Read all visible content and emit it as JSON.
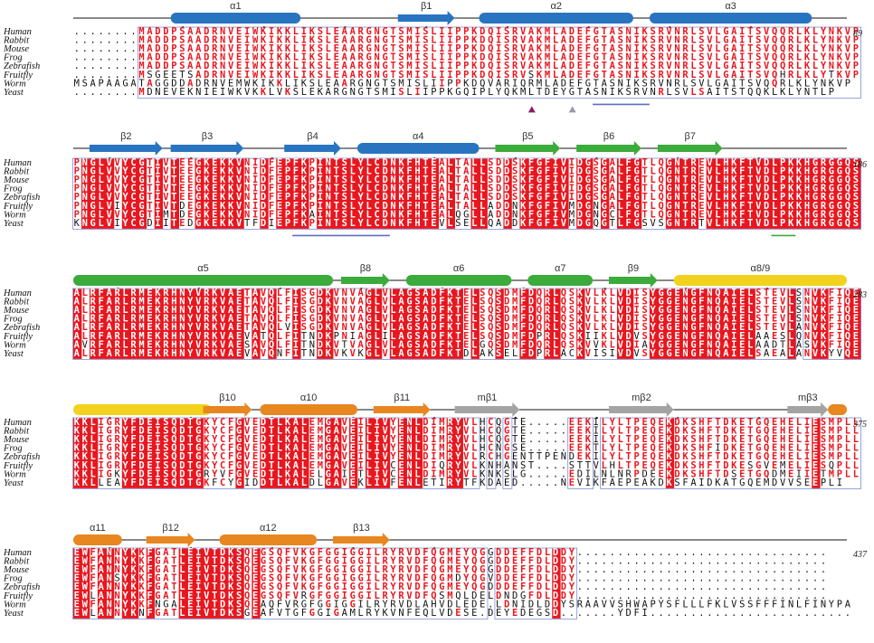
{
  "species": [
    "Human",
    "Rabbit",
    "Mouse",
    "Frog",
    "Zebrafish",
    "Fruitfly",
    "Worm",
    "Yeast"
  ],
  "colors": {
    "helix_blue": "#2874c0",
    "strand_green": "#3bab3b",
    "helix_yellow": "#f2d21c",
    "orange": "#e8861f",
    "gray": "#a3a3a3",
    "conserved": "#e8171f",
    "box": "#7f8fd0",
    "marker_purple": "#8a1c6a",
    "marker_gray": "#9a9aa8",
    "underline_blue": "#5b6fbf",
    "underline_green": "#3bab3b"
  },
  "blocks": [
    {
      "end_number": "89",
      "sequences": [
        "........MADDPSAADRNVEIWKIKKLIKSLEAARGNGTSMISLIIPPKDQISRVAKMLADEFGTASNIKSRVNRLSVLGAITSVQQRLKLYNKVP",
        "........MADDPSAADRNVEIWKIKKLIKSLEAARGNGTSMISLIIPPKDQISRVAKMLADEFGTASNIKSRVNRLSVLGAITSVQQRLKLYNKVP",
        "........MADDPSAADRNVEIWKIKKLIKSLEAARGNGTSMISLIIPPKDQISRVAKMLADEFGTASNIKSRVNRLSVLGAITSVQQRLKLYNKVP",
        "........MADDPSAADRNVEIWKIKKLIKSLEAARGNGTSMISLIIPPKDQISRVAKMLADEFGTASNIKSRVNRLSVLGAITSVQQRLKLYNKVP",
        "........MADDPSAADRNVEIWKIKKLIKSLEAARGNGTSMISLIIPPKDQISRVAKMLADEFGTASNIKSRVNRLSVLGAITSVQQRLKLYNKVP",
        "........MSGEETSADRNVEIWKIKKLIKSLEAARGNGTSMISLIIPPKDQISRVSKMLADEFGTASNIKSRVNRLSVLGAITSVQHRLKLYTKVP",
        "MSAPAAGATAGGDDADRNVEMWKIKKLIKSLEAARGNGTSMISLIIPPKDQVARIQRMLADEFGTASNIKSRVNRLSVLGAITSVQQRLKLYNKVP",
        "........MDNEVEKNIEIWKVKKLVKSLEKARGNGTSMISLIIPPKGQIPLYQKMLTDEYGTASNIKSRVNRLSVLSAITSTQQKLKLYNTLP"
      ],
      "annotations": [
        {
          "kind": "helix",
          "label": "α1",
          "color": "helix_blue",
          "from": 13,
          "to": 28
        },
        {
          "kind": "strand",
          "label": "β1",
          "color": "helix_blue",
          "from": 41,
          "to": 47
        },
        {
          "kind": "helix",
          "label": "α2",
          "color": "helix_blue",
          "from": 51,
          "to": 69
        },
        {
          "kind": "helix",
          "label": "α3",
          "color": "helix_blue",
          "from": 72,
          "to": 91
        }
      ],
      "dots": [
        14,
        24,
        34,
        44,
        54,
        64,
        74,
        84
      ],
      "markers": [
        {
          "col": 57,
          "color": "marker_purple"
        },
        {
          "col": 62,
          "color": "marker_gray"
        }
      ],
      "underlines": [
        {
          "from": 65,
          "to": 71,
          "color": "underline_blue"
        }
      ]
    },
    {
      "end_number": "186",
      "sequences": [
        "PNGLVVYCGTIVTEEGKEKKVNIDFEPFKPINTSLYLCDNKFHTEALTALLSDDSKFGFIVIDGSGALFGTLQGNTREVLHKFTVDLPKKHGRGGQS",
        "PNGLVVYCGTIVTEEGKEKKVNIDFEPFKPINTSLYLCDNKFHTEALTALLSDDSKFGFIVIDGSGALFGTLQGNTREVLHKFTVDLPKKHGRGGQS",
        "PNGLVVYCGTIVTEEGKEKKVNIDFEPFKPINTSLYLCDNKFHTEALTALLSDDSKFGFIVIDGSGALFGTLQGNTREVLHKFTVDLPKKHGRGGQS",
        "PNGLVVYCGTIVTEEGKEKKVNIDFEPFKPINTSLYLCDNKFHTEALTALLSDDSKFGFIVIDGSGALFGTLQGNTREVLHKFTVDLPKKHGRGGQS",
        "PNGLVVYCGTIVTEEGKEKKVNIDFEPFKPINTSLYLCDNKFHTEALTALLSDDSKFGFIVIDGSGALFGTLQGNTREVLHKFTVDLPKKHGRGGQS",
        "PNGLVIYCGTIVTDEGKEKKVNIDFEPFKPINTSLYLCDNKFHTEALTALLADDNKFGFIVMDGNGALFGTLQGNTREVLHKFTVDLPKKHGRGGQS",
        "PNGLVVYCGTIMTDEGKEKKVNIDFEPFKAINTSLYLCDNKFHTEALQGLLADDNKFGFIVMDGNGCLFGTLQGNTREVLHKFTVDLPKKHGRGGQS",
        "KNGLVIYCGDIITEDGKEKKVTFDIEPFKPINTSLYLCDNKFHTEVLSELLQADDKFGFIVMDGQGTLFGSVSGNTRTVLHKFTVDLPKKHGRGGQS"
      ],
      "annotations": [
        {
          "kind": "strand",
          "label": "β2",
          "color": "helix_blue",
          "from": 3,
          "to": 11
        },
        {
          "kind": "strand",
          "label": "β3",
          "color": "helix_blue",
          "from": 13,
          "to": 21
        },
        {
          "kind": "strand",
          "label": "β4",
          "color": "helix_blue",
          "from": 27,
          "to": 33
        },
        {
          "kind": "helix",
          "label": "α4",
          "color": "helix_blue",
          "from": 36,
          "to": 50
        },
        {
          "kind": "strand",
          "label": "β5",
          "color": "strand_green",
          "from": 53,
          "to": 60
        },
        {
          "kind": "strand",
          "label": "β6",
          "color": "strand_green",
          "from": 63,
          "to": 70
        },
        {
          "kind": "strand",
          "label": "β7",
          "color": "strand_green",
          "from": 73,
          "to": 80
        }
      ],
      "dots": [
        5,
        15,
        25,
        35,
        45,
        55,
        65,
        75,
        85
      ],
      "markers": [],
      "underlines": [
        {
          "from": 28,
          "to": 39,
          "color": "underline_blue"
        },
        {
          "from": 87,
          "to": 89,
          "color": "underline_green"
        }
      ]
    },
    {
      "end_number": "283",
      "sequences": [
        "ALRFARLRMEKRHNYVRKVAETAVQLFISGDKVNVAGLVLAGSADFKTELSQSDMFDQRLQSKVLKLVDISYGGENGFNQAIELSTEVLSNVKFIQE",
        "ALRFARLRMEKRHNYVRKVAETAVQLFISGDKVNVAGLVLAGSADFKTELSQSDMFDQRLQSKVLKLVDISYGGENGFNQAIELSTEVLSNVKFIQE",
        "ALRFARLRMEKRHNYVRKVAETAVQLFISGDKVNVAGLVLAGSADFKTELSQSDMFDQRLQSKVLKLVDISYGGENGFNQAIELSTEVLSNVKFIQE",
        "ALRFARLRMEKRHNYVRKVAETAVQLFISGDKVNVAGLVLAGSADFKTELSQSDMFDQRLQSKVLKLVDISYGGENGFNQAIELSTEVLSNVKFIQE",
        "ALRFARLRMEKRHNYVRKVAETAVQLVISGDKVNVAGLVLAGSADFKTELSQSDMFDQRLQSKVLKLVDISYGGENGFNQAIELSTEVLANVKFIQE",
        "ALRFARLRMEKRHNYVRKVAEVATQLFITNDKPNIAGLILAGSADFKTELSQSDMFDPRLQSKIIKLVDVSYGGENGFNQAIELAAESLQNVKFIQE",
        "AVRFARLRMEKRHNYVRKVAESAVQLFITNDKVTVAGLVLAGSADFKTELGQSDMFDQRLQSKVVKLVDIAYGGENGFNQAIELAADTLASVKFIQE",
        "ALRFARLRMEKRHNYVRKVAEVAVQNFITNDKVKVKGLVLAGSADFKTDLAKSELFDPRLACKVISIVDVSYGGENGFNQAIELSAEALANVKYVQE"
      ],
      "annotations": [
        {
          "kind": "helix",
          "label": "α5",
          "color": "strand_green",
          "from": 1,
          "to": 32
        },
        {
          "kind": "strand",
          "label": "β8",
          "color": "strand_green",
          "from": 34,
          "to": 39
        },
        {
          "kind": "helix",
          "label": "α6",
          "color": "strand_green",
          "from": 42,
          "to": 54
        },
        {
          "kind": "helix",
          "label": "α7",
          "color": "strand_green",
          "from": 57,
          "to": 64
        },
        {
          "kind": "strand",
          "label": "β9",
          "color": "strand_green",
          "from": 67,
          "to": 72
        },
        {
          "kind": "helix",
          "label": "α8/9",
          "color": "helix_yellow",
          "from": 75,
          "to": 97
        }
      ],
      "dots": [
        6,
        16,
        26,
        36,
        46,
        56,
        66,
        76,
        86
      ],
      "markers": [],
      "underlines": []
    },
    {
      "end_number": "375",
      "sequences": [
        "KKLIGRYFDEISQDTGKYCFGVEDTLKALEMGAVEILIVYENLDIMRYVLHCQGTE.....EEKILYLTPEQEKDKSHFTDKETGQEHELIESMPLL",
        "KKLIGRYFDEISQDTGKYCFGVEDTLKALEMGAVEILIVYENLDIMRYVLHCQGTE.....EEKILYLTPEQEKDKSHFTDKETGQEHELIESMPLL",
        "KKLIGRYFDEISQDTGKYCFGVEDTLKALEMGAVEILIVYENLDIMRYVLHCQGTE.....EEKILYLTPEQEKDKSHFTDKETGQEHELIESMPLL",
        "KKLIGRYFDEISQDTGKYCFGVEDTLKALEMGAVEILIVYENLDIMRYVLHCNGSE.....EEKTLYLTPEQEKDKSHFIDKETGQEHELIESMPLL",
        "KKLIGRYFDEISQDTGKYCFGVEDTLKALEMGAVEILIVYENLDIMRYVLRCHGENTTPENDEKILYLTPEQEKDKSHFTDKETGQEHELIESMPLL",
        "KKLIGRYFDEISQDTGKYCFGVEDTLKALEMGAVEILIVCENLDIQRYVLKNHANST....STTVLHLTPEQEKDKSHFTDKESGVEMELIESQPLL",
        "KKLIGKYFDEISQDTGRYVFGVEDTLKALELGAIETLIVCENLDIMRYVLKNKSLG.....EDILNLNRPDEEKDKSHFTDSETGQDMEIIETMPLL",
        "KKLLEAYFDEISQDTGKFCYGIDDTLKALDLGAVEKLIVFENLETIRYTFKDAED.....NEVIKFAEPEAKDKSFAIDKATGQEMDVVSEEPLI"
      ],
      "annotations": [
        {
          "kind": "helix",
          "label": "",
          "color": "helix_yellow",
          "from": 1,
          "to": 17
        },
        {
          "kind": "strand",
          "label": "β10",
          "color": "orange",
          "from": 17,
          "to": 22
        },
        {
          "kind": "helix",
          "label": "α10",
          "color": "orange",
          "from": 24,
          "to": 35
        },
        {
          "kind": "strand",
          "label": "β11",
          "color": "orange",
          "from": 38,
          "to": 44
        },
        {
          "kind": "strand",
          "label": "mβ1",
          "color": "gray",
          "from": 48,
          "to": 55
        },
        {
          "kind": "strand",
          "label": "mβ2",
          "color": "gray",
          "from": 67,
          "to": 74
        },
        {
          "kind": "strand",
          "label": "mβ3",
          "color": "gray",
          "from": 89,
          "to": 93
        },
        {
          "kind": "helix",
          "label": "",
          "color": "orange",
          "from": 94,
          "to": 98
        }
      ],
      "dots": [
        5,
        15,
        25,
        35,
        45,
        55,
        65,
        75,
        85
      ],
      "markers": [],
      "underlines": []
    },
    {
      "end_number": "437",
      "sequences": [
        "EWFANNYKKFGATLEIVTDKSQEGSQFVKGFGGIGGILRYRVDFQGMEYQGGDDEFFDLDDY...............................",
        "EWFANNYKKFGATLEIVTDKSQEGSQFVKGFGGIGGILRYRVDFQGMEYQGGDDEFFDLDDY...............................",
        "EWFANNYKKFGATLEIVTDKSQEGSQFVKGFGGIGGILRYRVDFQGMEYQGGDDEFFDLDDY...............................",
        "EWFANSYKKFGATLEIVTDKSQEGSQFVKGFGGIGGILRYRVDFQGMDYQGVDDEFFDLDDY...............................",
        "EWFANNYKKFGATLEIVTDKSQEGSQFVKGFGGIGGILRYRVDFQGMEYQGDDDEFFDLDDY...............................",
        "EWLANNYKKFGATLEIVTDKSQEGSQFVRGFGGIGGILRYRVDFQSMQLDELDNDGFDLDDY...............................",
        "EWFANNYKKFNGALEIVTDKSQEAQFVRGFGGIGGILRYRVDLAHVDLEDE.LDNIDLDDYSRAAVVSHWAPYSFLLLFKLVSSFFFINLFINYPA",
        "EWLANNYKNFGATLEIVTDKSGEAFVTGFGGIGAMLRYKVNFEQLVDESE.DEYEDEGSD.......YDFI........................."
      ],
      "annotations": [
        {
          "kind": "helix",
          "label": "α11",
          "color": "orange",
          "from": 1,
          "to": 6
        },
        {
          "kind": "strand",
          "label": "β12",
          "color": "orange",
          "from": 10,
          "to": 15
        },
        {
          "kind": "helix",
          "label": "α12",
          "color": "orange",
          "from": 19,
          "to": 30
        },
        {
          "kind": "strand",
          "label": "β13",
          "color": "orange",
          "from": 33,
          "to": 39
        }
      ],
      "dots": [
        5,
        15,
        25,
        35,
        45
      ],
      "markers": [],
      "underlines": []
    }
  ]
}
